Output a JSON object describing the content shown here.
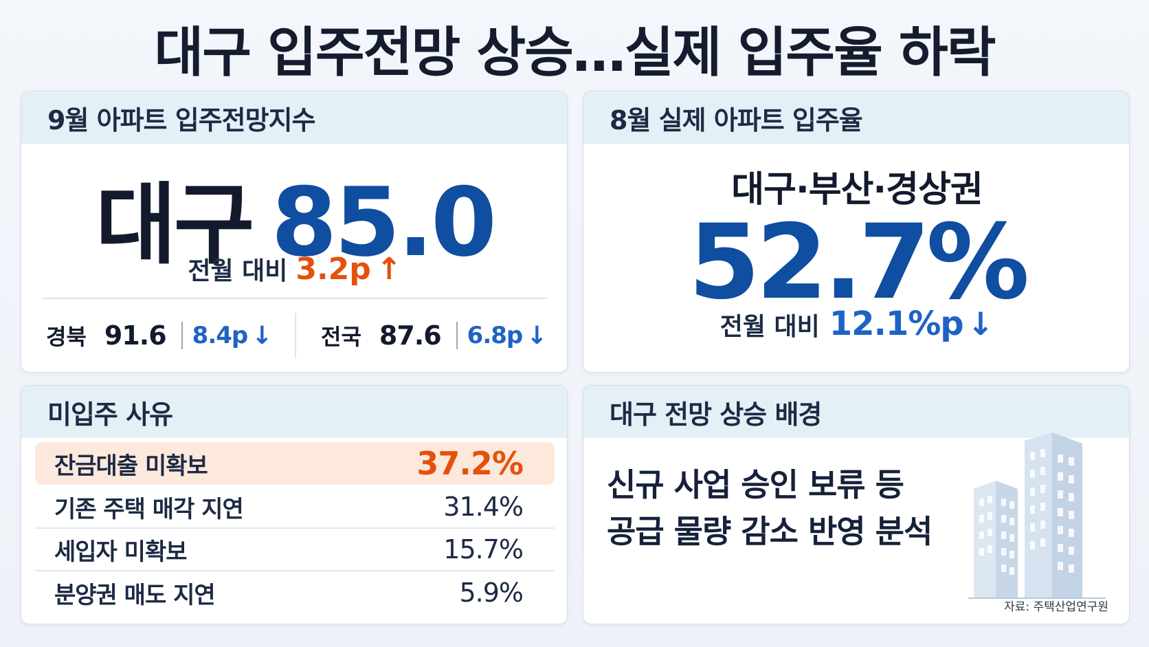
{
  "headline": "대구 입주전망 상승…실제 입주율 하락",
  "forecast": {
    "title": "9월 아파트 입주전망지수",
    "region": "대구",
    "value": "85.0",
    "change_label": "전월 대비",
    "change_value": "3.2p",
    "change_direction": "up",
    "comparisons": [
      {
        "region": "경북",
        "value": "91.6",
        "change": "8.4p",
        "direction": "down"
      },
      {
        "region": "전국",
        "value": "87.6",
        "change": "6.8p",
        "direction": "down"
      }
    ]
  },
  "occupancy": {
    "title": "8월 실제 아파트 입주율",
    "region": "대구·부산·경상권",
    "value": "52.7%",
    "change_label": "전월 대비",
    "change_value": "12.1%p",
    "change_direction": "down"
  },
  "reasons": {
    "title": "미입주 사유",
    "items": [
      {
        "label": "잔금대출 미확보",
        "value": "37.2%",
        "highlight": true
      },
      {
        "label": "기존 주택 매각 지연",
        "value": "31.4%",
        "highlight": false
      },
      {
        "label": "세입자 미확보",
        "value": "15.7%",
        "highlight": false
      },
      {
        "label": "분양권 매도 지연",
        "value": "5.9%",
        "highlight": false
      }
    ]
  },
  "background": {
    "title": "대구 전망 상승 배경",
    "lines": [
      "신규 사업 승인 보류 등",
      "공급 물량 감소 반영 분석"
    ],
    "source": "자료: 주택산업연구원",
    "illustration_icon": "buildings-icon"
  },
  "colors": {
    "accent_blue": "#0f4ea0",
    "down_blue": "#1e63c4",
    "up_orange": "#e4510b",
    "header_bg": "#e4f0f6",
    "highlight_bg": "#fde8dc"
  },
  "icons": {
    "up": "↑",
    "down": "↓"
  }
}
